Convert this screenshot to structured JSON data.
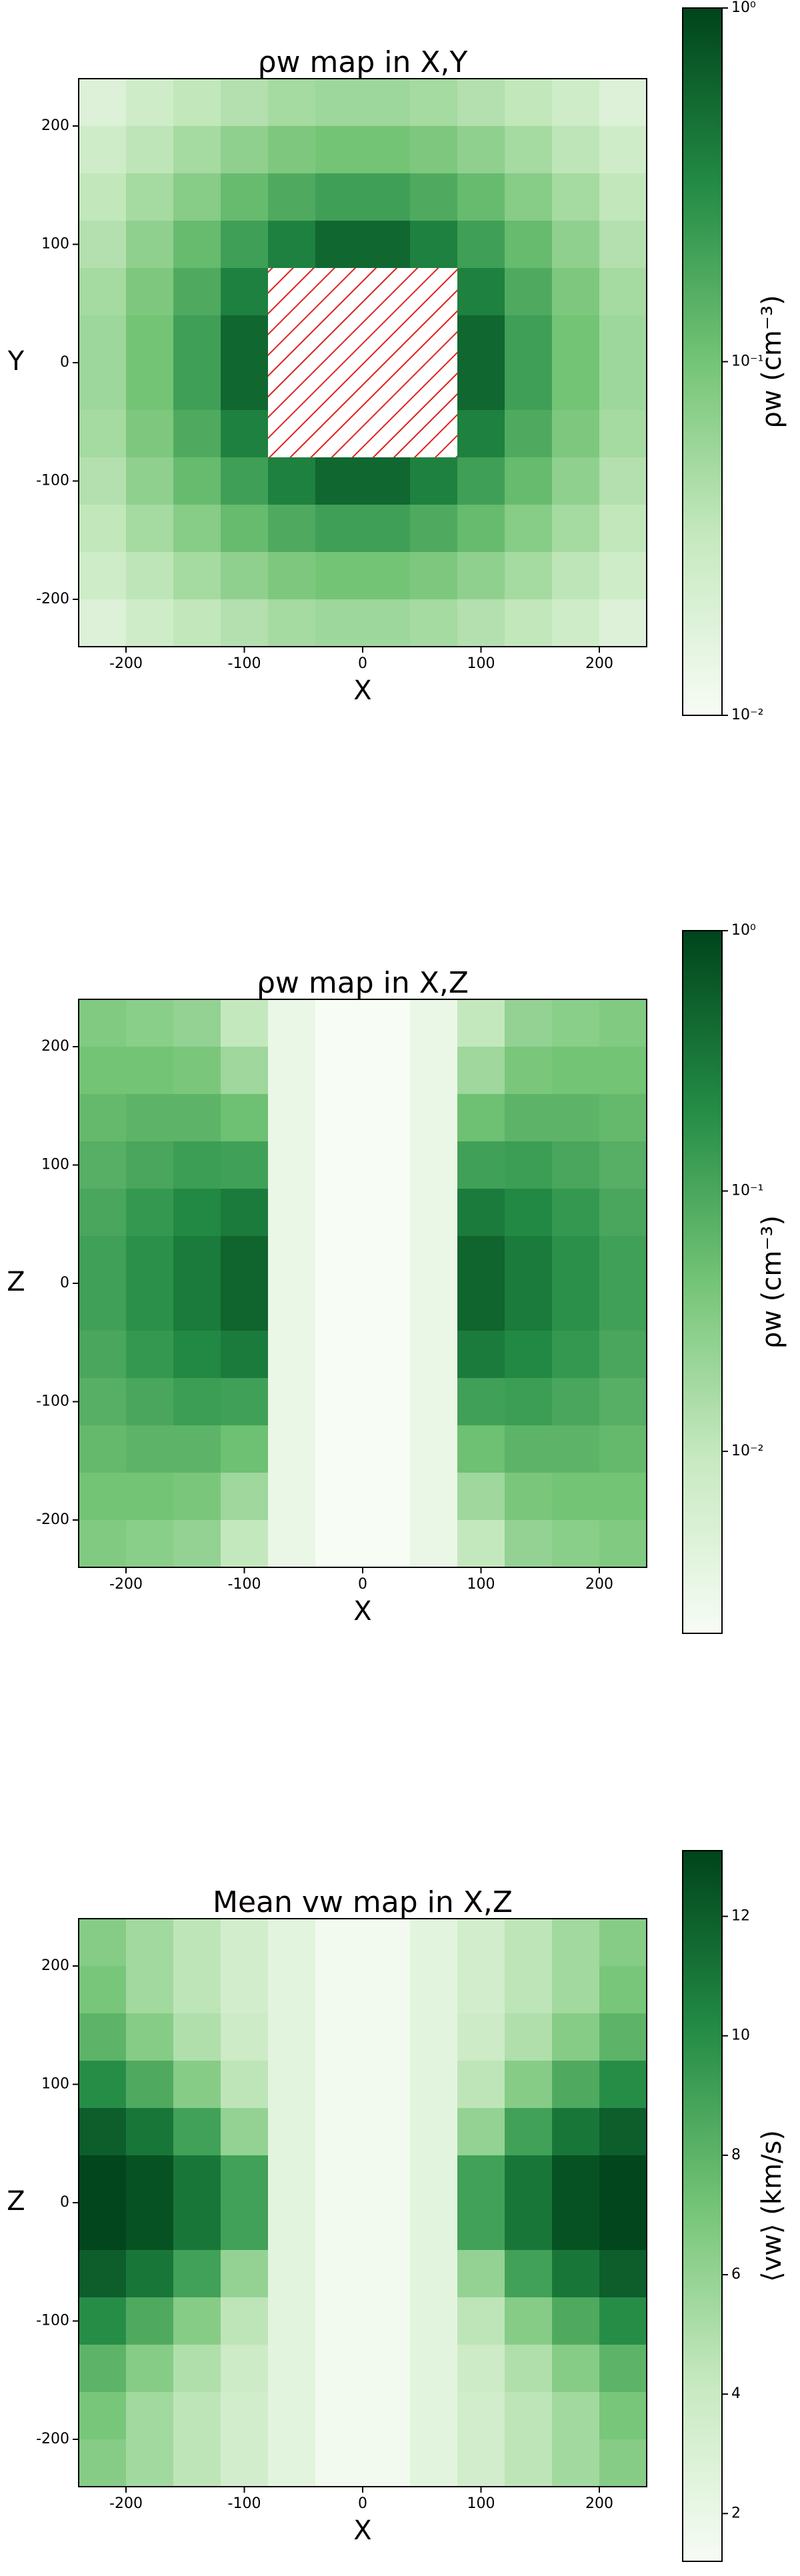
{
  "chart_data": [
    {
      "type": "heatmap",
      "title": "ρw map in X,Y",
      "xlabel": "X",
      "ylabel": "Y",
      "x": [
        -220,
        -180,
        -140,
        -100,
        -60,
        -20,
        20,
        60,
        100,
        140,
        180,
        220
      ],
      "y": [
        220,
        180,
        140,
        100,
        60,
        20,
        -20,
        -60,
        -100,
        -140,
        -180,
        -220
      ],
      "values": [
        [
          0.019,
          0.026,
          0.034,
          0.042,
          0.051,
          0.056,
          0.056,
          0.051,
          0.042,
          0.034,
          0.026,
          0.019
        ],
        [
          0.026,
          0.036,
          0.051,
          0.068,
          0.088,
          0.1,
          0.1,
          0.088,
          0.068,
          0.051,
          0.036,
          0.026
        ],
        [
          0.034,
          0.051,
          0.077,
          0.12,
          0.17,
          0.21,
          0.21,
          0.17,
          0.12,
          0.077,
          0.051,
          0.034
        ],
        [
          0.042,
          0.068,
          0.12,
          0.21,
          0.37,
          0.57,
          0.57,
          0.37,
          0.21,
          0.12,
          0.068,
          0.042
        ],
        [
          0.051,
          0.088,
          0.17,
          0.37,
          null,
          null,
          null,
          null,
          0.37,
          0.17,
          0.088,
          0.051
        ],
        [
          0.056,
          0.1,
          0.21,
          0.57,
          null,
          null,
          null,
          null,
          0.57,
          0.21,
          0.1,
          0.056
        ],
        [
          0.056,
          0.1,
          0.21,
          0.57,
          null,
          null,
          null,
          null,
          0.57,
          0.21,
          0.1,
          0.056
        ],
        [
          0.051,
          0.088,
          0.17,
          0.37,
          null,
          null,
          null,
          null,
          0.37,
          0.17,
          0.088,
          0.051
        ],
        [
          0.042,
          0.068,
          0.12,
          0.21,
          0.37,
          0.57,
          0.57,
          0.37,
          0.21,
          0.12,
          0.068,
          0.042
        ],
        [
          0.034,
          0.051,
          0.077,
          0.12,
          0.17,
          0.21,
          0.21,
          0.17,
          0.12,
          0.077,
          0.051,
          0.034
        ],
        [
          0.026,
          0.036,
          0.051,
          0.068,
          0.088,
          0.1,
          0.1,
          0.088,
          0.068,
          0.051,
          0.036,
          0.026
        ],
        [
          0.019,
          0.026,
          0.034,
          0.042,
          0.051,
          0.056,
          0.056,
          0.051,
          0.042,
          0.034,
          0.026,
          0.019
        ]
      ],
      "xlim": [
        -240,
        240
      ],
      "ylim": [
        -240,
        240
      ],
      "xticks": [
        -200,
        -100,
        0,
        100,
        200
      ],
      "yticks": [
        -200,
        -100,
        0,
        100,
        200
      ],
      "colorbar": {
        "label": "ρw (cm⁻³)",
        "log": true,
        "lim": [
          0.01,
          1
        ],
        "ticks": [
          {
            "value": 0.01,
            "label": "10⁻²"
          },
          {
            "value": 0.1,
            "label": "10⁻¹"
          },
          {
            "value": 1,
            "label": "10⁰"
          }
        ]
      },
      "colormap": [
        "#f7fcf5",
        "#c7e9c0",
        "#74c476",
        "#238b45",
        "#00441b"
      ]
    },
    {
      "type": "heatmap",
      "title": "ρw map in X,Z",
      "xlabel": "X",
      "ylabel": "Z",
      "x": [
        -220,
        -180,
        -140,
        -100,
        -60,
        -20,
        20,
        60,
        100,
        140,
        180,
        220
      ],
      "y": [
        220,
        180,
        140,
        100,
        60,
        20,
        -20,
        -60,
        -100,
        -140,
        -180,
        -220
      ],
      "values": [
        [
          0.035,
          0.03,
          0.025,
          0.01,
          0.003,
          0.002,
          0.002,
          0.003,
          0.01,
          0.025,
          0.03,
          0.035
        ],
        [
          0.045,
          0.045,
          0.04,
          0.02,
          0.003,
          0.002,
          0.002,
          0.003,
          0.02,
          0.04,
          0.045,
          0.045
        ],
        [
          0.06,
          0.07,
          0.07,
          0.05,
          0.003,
          0.002,
          0.002,
          0.003,
          0.05,
          0.07,
          0.07,
          0.06
        ],
        [
          0.08,
          0.1,
          0.13,
          0.12,
          0.003,
          0.002,
          0.002,
          0.003,
          0.12,
          0.13,
          0.1,
          0.08
        ],
        [
          0.1,
          0.15,
          0.22,
          0.3,
          0.003,
          0.002,
          0.002,
          0.003,
          0.3,
          0.22,
          0.15,
          0.1
        ],
        [
          0.12,
          0.18,
          0.3,
          0.5,
          0.003,
          0.002,
          0.002,
          0.003,
          0.5,
          0.3,
          0.18,
          0.12
        ],
        [
          0.12,
          0.18,
          0.3,
          0.5,
          0.003,
          0.002,
          0.002,
          0.003,
          0.5,
          0.3,
          0.18,
          0.12
        ],
        [
          0.1,
          0.15,
          0.22,
          0.3,
          0.003,
          0.002,
          0.002,
          0.003,
          0.3,
          0.22,
          0.15,
          0.1
        ],
        [
          0.08,
          0.1,
          0.13,
          0.12,
          0.003,
          0.002,
          0.002,
          0.003,
          0.12,
          0.13,
          0.1,
          0.08
        ],
        [
          0.06,
          0.07,
          0.07,
          0.05,
          0.003,
          0.002,
          0.002,
          0.003,
          0.05,
          0.07,
          0.07,
          0.06
        ],
        [
          0.045,
          0.045,
          0.04,
          0.02,
          0.003,
          0.002,
          0.002,
          0.003,
          0.02,
          0.04,
          0.045,
          0.045
        ],
        [
          0.035,
          0.03,
          0.025,
          0.01,
          0.003,
          0.002,
          0.002,
          0.003,
          0.01,
          0.025,
          0.03,
          0.035
        ]
      ],
      "xlim": [
        -240,
        240
      ],
      "ylim": [
        -240,
        240
      ],
      "xticks": [
        -200,
        -100,
        0,
        100,
        200
      ],
      "yticks": [
        -200,
        -100,
        0,
        100,
        200
      ],
      "colorbar": {
        "label": "ρw (cm⁻³)",
        "log": true,
        "lim": [
          0.002,
          1
        ],
        "ticks": [
          {
            "value": 0.01,
            "label": "10⁻²"
          },
          {
            "value": 0.1,
            "label": "10⁻¹"
          },
          {
            "value": 1,
            "label": "10⁰"
          }
        ]
      },
      "colormap": [
        "#f7fcf5",
        "#c7e9c0",
        "#74c476",
        "#238b45",
        "#00441b"
      ]
    },
    {
      "type": "heatmap",
      "title": "Mean vw map in X,Z",
      "xlabel": "X",
      "ylabel": "Z",
      "x": [
        -220,
        -180,
        -140,
        -100,
        -60,
        -20,
        20,
        60,
        100,
        140,
        180,
        220
      ],
      "y": [
        220,
        180,
        140,
        100,
        60,
        20,
        -20,
        -60,
        -100,
        -140,
        -180,
        -220
      ],
      "values": [
        [
          6.5,
          5.5,
          4.5,
          3.5,
          2.5,
          1.5,
          1.5,
          2.5,
          3.5,
          4.5,
          5.5,
          6.5
        ],
        [
          7,
          5.5,
          4.5,
          3.5,
          2.5,
          1.5,
          1.5,
          2.5,
          3.5,
          4.5,
          5.5,
          7
        ],
        [
          8,
          6.5,
          5,
          3.8,
          2.5,
          1.5,
          1.5,
          2.5,
          3.8,
          5,
          6.5,
          8
        ],
        [
          10,
          8.5,
          6.5,
          4.5,
          2.5,
          1.5,
          1.5,
          2.5,
          4.5,
          6.5,
          8.5,
          10
        ],
        [
          12,
          11,
          9,
          6,
          2.5,
          1.5,
          1.5,
          2.5,
          6,
          9,
          11,
          12
        ],
        [
          13,
          12.5,
          11,
          9,
          2.5,
          1.5,
          1.5,
          2.5,
          9,
          11,
          12.5,
          13
        ],
        [
          13,
          12.5,
          11,
          9,
          2.5,
          1.5,
          1.5,
          2.5,
          9,
          11,
          12.5,
          13
        ],
        [
          12,
          11,
          9,
          6,
          2.5,
          1.5,
          1.5,
          2.5,
          6,
          9,
          11,
          12
        ],
        [
          10,
          8.5,
          6.5,
          4.5,
          2.5,
          1.5,
          1.5,
          2.5,
          4.5,
          6.5,
          8.5,
          10
        ],
        [
          8,
          6.5,
          5,
          3.8,
          2.5,
          1.5,
          1.5,
          2.5,
          3.8,
          5,
          6.5,
          8
        ],
        [
          7,
          5.5,
          4.5,
          3.5,
          2.5,
          1.5,
          1.5,
          2.5,
          3.5,
          4.5,
          5.5,
          7
        ],
        [
          6.5,
          5.5,
          4.5,
          3.5,
          2.5,
          1.5,
          1.5,
          2.5,
          3.5,
          4.5,
          5.5,
          6.5
        ]
      ],
      "xlim": [
        -240,
        240
      ],
      "ylim": [
        -240,
        240
      ],
      "xticks": [
        -200,
        -100,
        0,
        100,
        200
      ],
      "yticks": [
        -200,
        -100,
        0,
        100,
        200
      ],
      "colorbar": {
        "label": "⟨vw⟩ (km/s)",
        "log": false,
        "lim": [
          1.2,
          13.1
        ],
        "ticks": [
          2,
          4,
          6,
          8,
          10,
          12
        ]
      },
      "colormap": [
        "#f7fcf5",
        "#c7e9c0",
        "#74c476",
        "#238b45",
        "#00441b"
      ]
    }
  ]
}
